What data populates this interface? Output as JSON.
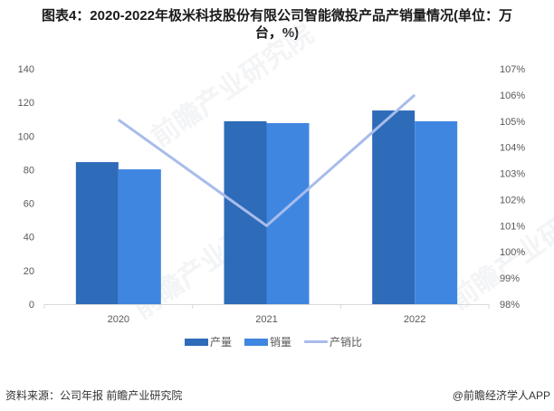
{
  "title": {
    "line1": "图表4：2020-2022年极米科技股份有限公司智能微投产品产销量情况(单位：万",
    "line2": "台，%)"
  },
  "colors": {
    "production": "#2E6BB8",
    "sales": "#3F86E0",
    "ratio": "#A8BCEB",
    "axis": "#D9D9D9",
    "tick_text": "#595959"
  },
  "legend": [
    {
      "label": "产量",
      "type": "bar"
    },
    {
      "label": "销量",
      "type": "bar"
    },
    {
      "label": "产销比",
      "type": "line"
    }
  ],
  "footer": {
    "source": "资料来源：公司年报 前瞻产业研究院",
    "brand": "@前瞻经济学人APP"
  },
  "watermark": "前瞻产业研究院",
  "chart_data": {
    "type": "bar",
    "title": "2020-2022年极米科技股份有限公司智能微投产品产销量情况(单位：万台，%)",
    "categories": [
      "2020",
      "2021",
      "2022"
    ],
    "series": [
      {
        "name": "产量",
        "type": "bar",
        "axis": "left",
        "values": [
          84.5,
          108.8,
          115.2
        ]
      },
      {
        "name": "销量",
        "type": "bar",
        "axis": "left",
        "values": [
          80.2,
          107.7,
          108.8
        ]
      },
      {
        "name": "产销比",
        "type": "line",
        "axis": "right",
        "values": [
          105.05,
          101.0,
          106.0
        ]
      }
    ],
    "left_axis": {
      "ylim": [
        0,
        140
      ],
      "ticks": [
        "0",
        "20",
        "40",
        "60",
        "80",
        "100",
        "120",
        "140"
      ]
    },
    "right_axis": {
      "ylim": [
        98,
        107
      ],
      "ticks": [
        "98%",
        "99%",
        "100%",
        "101%",
        "102%",
        "103%",
        "104%",
        "105%",
        "106%",
        "107%"
      ]
    },
    "xlabel": "",
    "ylabel": "",
    "grid": false,
    "legend_position": "bottom"
  }
}
